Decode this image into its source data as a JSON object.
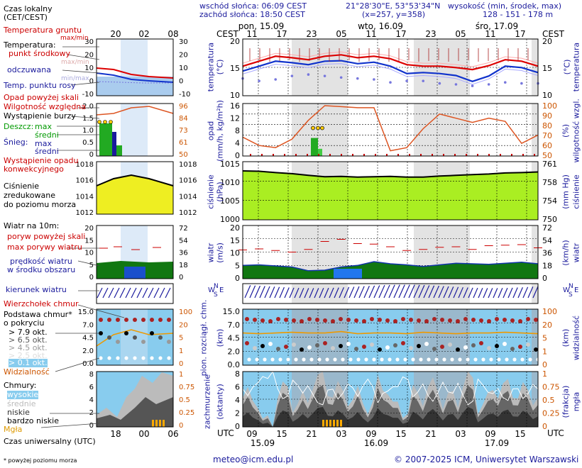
{
  "header": {
    "sunrise": "wschód słońca: 06:09 CEST",
    "sunset": "zachód słońca: 18:50 CEST",
    "coords": "21°28'30\"E, 53°53'34\"N",
    "grid": "(x=257, y=358)",
    "height_title": "wysokość (min, środek, max)",
    "heights": "128 - 151 - 178 m"
  },
  "legend": {
    "local_time": "Czas lokalny",
    "local_time2": "(CET/CEST)",
    "ground_temp": "Temperatura gruntu",
    "maxmin": "max/min",
    "temperature": "Temperatura:",
    "midpoint": "punkt środkowy",
    "maxmin2": "max/min",
    "perceived": "odczuwana",
    "minmax": "min/max",
    "dewpoint": "Temp. punktu rosy",
    "precip_above": "Opad powyżej skali",
    "rel_humidity": "Wilgotność względna",
    "storm": "Wystąpienie burzy",
    "rain": "Deszcz:",
    "rain_max": "max",
    "rain_mean": "średni",
    "snow": "Śnieg:",
    "snow_max": "max",
    "snow_mean": "średni",
    "conv1": "Wystąpienie opadu",
    "conv2": "konwekcyjnego",
    "pressure1": "Ciśnienie",
    "pressure2": "zredukowane",
    "pressure3": "do poziomu morza",
    "wind10": "Wiatr na 10m:",
    "gust_above": "poryw powyżej skali",
    "gust_max": "max porywy wiatru",
    "wind_speed": "prędkość wiatru",
    "wind_area": "w środku obszaru",
    "wind_dir": "kierunek wiatru",
    "cloud_top": "Wierzchołek chmur",
    "cloud_base": "Podstawa chmur*",
    "coverage": "o pokryciu",
    "okt79": "> 7.9 okt.",
    "okt65": "> 6.5 okt.",
    "okt45": "> 4.5 okt.",
    "okt25": "> 2.5 okt.",
    "okt01": "> 0.1 okt.",
    "visibility": "Widzialność",
    "clouds": "Chmury:",
    "high": "wysokie",
    "mid": "średnie",
    "low": "niskie",
    "verylow": "bardzo niskie",
    "fog": "Mgła",
    "utc_label": "Czas uniwersalny (UTC)",
    "footnote": "* powyżej poziomu morza"
  },
  "timeline": {
    "cest": "CEST",
    "utc": "UTC",
    "days_top": [
      "pon, 15.09",
      "wto, 16.09",
      "śro, 17.09"
    ],
    "hours_top": [
      "11",
      "17",
      "23",
      "05",
      "11",
      "17",
      "23",
      "05",
      "11",
      "17"
    ],
    "hours_bottom": [
      "09",
      "15",
      "21",
      "03",
      "09",
      "15",
      "21",
      "03",
      "09",
      "15"
    ],
    "days_bottom": [
      "15.09",
      "16.09",
      "17.09"
    ],
    "legend_hours_top": [
      "20",
      "02",
      "08"
    ],
    "legend_hours_bottom": [
      "18",
      "00",
      "06"
    ]
  },
  "axes": {
    "temp_left": [
      "20",
      "15",
      "10"
    ],
    "temp_right": [
      "20",
      "15",
      "10"
    ],
    "temp_title": "temperatura",
    "temp_unit": "(°C)",
    "precip_left": [
      "16",
      "12",
      "8",
      "4",
      "0"
    ],
    "hum_right": [
      "100",
      "90",
      "80",
      "70",
      "60",
      "50"
    ],
    "precip_title": "opad",
    "precip_unit": "(mm/h, kg/m²h)",
    "hum_title": "wilgotność wzgl.",
    "hum_unit": "(%)",
    "press_left": [
      "1015",
      "1010",
      "1005",
      "1000"
    ],
    "press_right": [
      "761",
      "758",
      "754",
      "750"
    ],
    "press_title": "ciśnienie",
    "press_unit": "(hPa)",
    "press_unit2": "(mm Hg)",
    "wind_left": [
      "20",
      "15",
      "10",
      "5",
      "0"
    ],
    "wind_right": [
      "72",
      "54",
      "36",
      "18",
      "0"
    ],
    "wind_title": "wiatr",
    "wind_unit": "(m/s)",
    "wind_unit2": "(km/h)",
    "cloud_left": [
      "15.0",
      "7.0",
      "4.5",
      "2.0",
      "0.0"
    ],
    "vis_right": [
      "100",
      "20",
      "5",
      "1",
      "0"
    ],
    "cloud_title": "pion. rozciągł. chm.",
    "cloud_unit": "(km)",
    "vis_title": "widzialność",
    "vis_unit": "(km)",
    "cover_left": [
      "8",
      "6",
      "4",
      "2",
      "0"
    ],
    "fog_right": [
      "1",
      "0.75",
      "0.5",
      "0.25",
      "0"
    ],
    "cover_title": "zachmurzenie",
    "cover_unit": "(oktanty)",
    "fog_title": "mgła",
    "fog_unit": "(frakcja)",
    "compass_n": "N",
    "compass_w": "W",
    "compass_s": "S",
    "compass_e": "E"
  },
  "legend_axes": {
    "temp": [
      "30",
      "20",
      "10",
      "0",
      "-10"
    ],
    "temp_r": [
      "30",
      "20",
      "10",
      "0",
      "-10"
    ],
    "precip": [
      "2.0",
      "1.5",
      "1.0",
      "0.5",
      "0"
    ],
    "hum": [
      "96",
      "84",
      "73",
      "61",
      "50"
    ],
    "press": [
      "1018",
      "1016",
      "1014",
      "1012"
    ],
    "wind": [
      "20",
      "15",
      "10",
      "5",
      "0"
    ],
    "wind_r": [
      "72",
      "54",
      "36",
      "18",
      "0"
    ],
    "cloud": [
      "15.0",
      "7.0",
      "4.5",
      "2.0",
      "0.0"
    ],
    "vis": [
      "100",
      "20",
      "5",
      "1",
      "0"
    ],
    "cover": [
      "8",
      "6",
      "4",
      "2",
      "0"
    ],
    "fog": [
      "1",
      "0.75",
      "0.5",
      "0.25",
      "0"
    ]
  },
  "footer": {
    "email": "meteo@icm.edu.pl",
    "copyright": "© 2007-2025 ICM, Uniwersytet Warszawski"
  },
  "colors": {
    "temp_line": "#dd0000",
    "perceived_line": "#1133cc",
    "dewpoint": "#7777dd",
    "humidity": "#dd5522",
    "precip": "#22aa22",
    "pressure_fill": "#aaee22",
    "wind_fill": "#117711",
    "sky_blue": "#88ccee",
    "visibility": "#ee9900"
  },
  "chart_data": [
    {
      "type": "line",
      "panel": "temperature",
      "ylabel": "temperatura (°C)",
      "ylim": [
        10,
        21
      ],
      "x_hours_cest": [
        11,
        14,
        17,
        20,
        23,
        2,
        5,
        8,
        11,
        14,
        17,
        20,
        23,
        2,
        5,
        8,
        11,
        14,
        17
      ],
      "series": [
        {
          "name": "punkt środkowy",
          "values": [
            15.5,
            16.5,
            17.5,
            17.2,
            16.8,
            17.5,
            17.8,
            17.2,
            17.5,
            17.0,
            15.8,
            15.5,
            15.5,
            15.2,
            14.8,
            15.6,
            16.8,
            16.5,
            15.5
          ]
        },
        {
          "name": "odczuwana",
          "values": [
            14.5,
            15.5,
            16.5,
            16.2,
            15.8,
            16.5,
            16.6,
            16.0,
            16.3,
            15.5,
            14.0,
            14.2,
            14.0,
            13.6,
            12.4,
            13.5,
            15.5,
            15.2,
            14.2
          ]
        },
        {
          "name": "Temp. punktu rosy",
          "values": [
            13.0,
            12.5,
            12.8,
            13.5,
            13.8,
            13.5,
            13.2,
            13.0,
            12.8,
            12.2,
            12.5,
            12.5,
            12.0,
            11.8,
            11.5,
            11.8,
            12.2,
            12.0,
            12.0
          ]
        }
      ]
    },
    {
      "type": "bar",
      "panel": "precipitation",
      "ylabel": "opad (mm/h, kg/m²h)",
      "ylim": [
        0,
        16
      ],
      "series": [
        {
          "name": "średni",
          "values": [
            0,
            0,
            0,
            0,
            0,
            0,
            0,
            0,
            0,
            5.5,
            0,
            0,
            0,
            0,
            0,
            0,
            0,
            0,
            0
          ]
        }
      ],
      "humidity": [
        68,
        60,
        58,
        66,
        84,
        98,
        97,
        96,
        96,
        55,
        58,
        76,
        90,
        86,
        82,
        86,
        83,
        62,
        70
      ]
    },
    {
      "type": "area",
      "panel": "pressure",
      "ylabel": "ciśnienie (hPa)",
      "ylim": [
        1000,
        1016
      ],
      "values": [
        1013.3,
        1013.2,
        1012.8,
        1012.5,
        1012.0,
        1011.6,
        1011.7,
        1011.5,
        1011.6,
        1011.7,
        1011.5,
        1011.5,
        1011.8,
        1012.0,
        1012.2,
        1012.4,
        1012.7,
        1012.8,
        1013.0
      ]
    },
    {
      "type": "area",
      "panel": "wind",
      "ylabel": "wiatr (m/s)",
      "ylim": [
        0,
        20
      ],
      "values": [
        5.0,
        5.2,
        4.8,
        4.4,
        3.0,
        3.2,
        4.4,
        5.0,
        6.4,
        5.6,
        5.2,
        4.6,
        5.2,
        5.8,
        5.6,
        5.4,
        5.8,
        6.2,
        5.6
      ],
      "gusts": [
        10.8,
        11.2,
        10.6,
        10.0,
        11.0,
        14.0,
        14.8,
        13.2,
        13.0,
        12.0,
        10.6,
        11.0,
        11.8,
        12.0,
        11.0,
        12.4,
        12.6,
        12.8,
        11.6
      ]
    },
    {
      "type": "area",
      "panel": "cloud_cover",
      "ylabel": "zachmurzenie (oktanty)",
      "ylim": [
        0,
        8
      ],
      "values": [
        4.2,
        0.4,
        5.2,
        3.6,
        7.0,
        5.4,
        4.4,
        3.4,
        6.0,
        2.6,
        4.6,
        5.6,
        4.0,
        6.6,
        3.4,
        5.6,
        5.2,
        4.6,
        0.8
      ]
    }
  ]
}
